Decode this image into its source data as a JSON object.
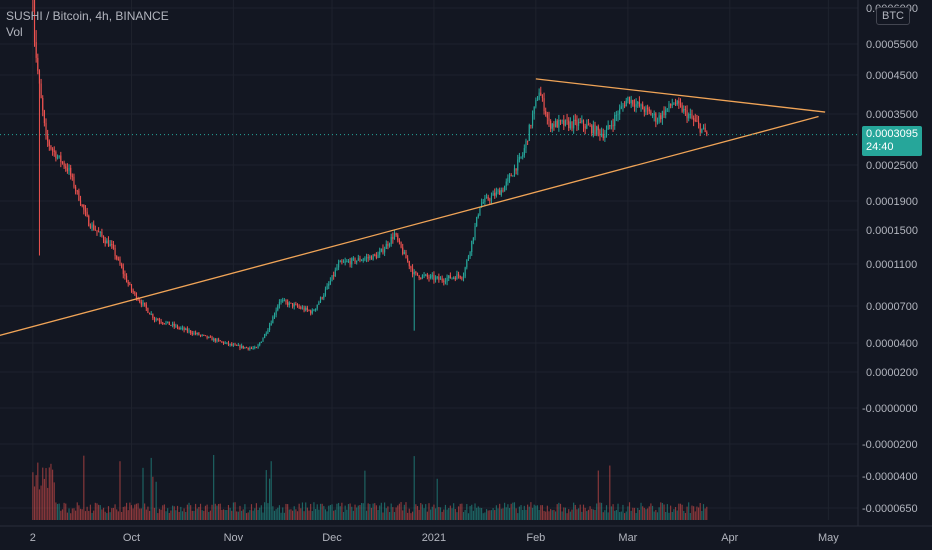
{
  "header": {
    "symbol_line": "SUSHI / Bitcoin, 4h, BINANCE",
    "volume_label": "Vol"
  },
  "currency_badge": "BTC",
  "last_price": {
    "value": "0.0003095",
    "countdown": "24:40"
  },
  "colors": {
    "background": "#131722",
    "up": "#26a69a",
    "down": "#ef5350",
    "trendline": "#f0a457",
    "text": "#b2b5be",
    "grid": "#1e222d"
  },
  "chart_data": {
    "type": "candlestick",
    "x_tick_labels": [
      "2",
      "Oct",
      "Nov",
      "Dec",
      "2021",
      "Feb",
      "Mar",
      "Apr",
      "May"
    ],
    "y_tick_labels": [
      "0.0006000",
      "0.0005500",
      "0.0004500",
      "0.0003500",
      "0.0002500",
      "0.0001900",
      "0.0001500",
      "0.0001100",
      "0.0000700",
      "0.0000400",
      "0.0000200"
    ],
    "volume_tick_labels": [
      "-0.0000000",
      "-0.0000200",
      "-0.0000400",
      "-0.0000650"
    ],
    "price_anchors": [
      {
        "date": "2020-09-01",
        "price": 0.00062
      },
      {
        "date": "2020-09-03",
        "price": 0.00042
      },
      {
        "date": "2020-09-05",
        "price": 0.0003
      },
      {
        "date": "2020-09-08",
        "price": 0.00027
      },
      {
        "date": "2020-09-12",
        "price": 0.00024
      },
      {
        "date": "2020-09-18",
        "price": 0.00016
      },
      {
        "date": "2020-09-25",
        "price": 0.00013
      },
      {
        "date": "2020-10-01",
        "price": 8.5e-05
      },
      {
        "date": "2020-10-08",
        "price": 6e-05
      },
      {
        "date": "2020-10-20",
        "price": 4.8e-05
      },
      {
        "date": "2020-11-01",
        "price": 3.8e-05
      },
      {
        "date": "2020-11-08",
        "price": 3.6e-05
      },
      {
        "date": "2020-11-15",
        "price": 7.5e-05
      },
      {
        "date": "2020-11-25",
        "price": 6.5e-05
      },
      {
        "date": "2020-12-03",
        "price": 0.00011
      },
      {
        "date": "2020-12-15",
        "price": 0.00012
      },
      {
        "date": "2020-12-20",
        "price": 0.000145
      },
      {
        "date": "2020-12-26",
        "price": 0.0001
      },
      {
        "date": "2021-01-03",
        "price": 9.5e-05
      },
      {
        "date": "2021-01-10",
        "price": 0.0001
      },
      {
        "date": "2021-01-15",
        "price": 0.000185
      },
      {
        "date": "2021-01-22",
        "price": 0.00021
      },
      {
        "date": "2021-01-28",
        "price": 0.00027
      },
      {
        "date": "2021-02-02",
        "price": 0.00041
      },
      {
        "date": "2021-02-05",
        "price": 0.00033
      },
      {
        "date": "2021-02-15",
        "price": 0.00033
      },
      {
        "date": "2021-02-22",
        "price": 0.00031
      },
      {
        "date": "2021-03-01",
        "price": 0.00039
      },
      {
        "date": "2021-03-10",
        "price": 0.00034
      },
      {
        "date": "2021-03-15",
        "price": 0.00038
      },
      {
        "date": "2021-03-22",
        "price": 0.00033
      },
      {
        "date": "2021-03-25",
        "price": 0.0003095
      }
    ],
    "trendlines": [
      {
        "name": "support",
        "from": {
          "date": "2020-08-10",
          "price": 3.8e-05
        },
        "to": {
          "date": "2021-04-28",
          "price": 0.000345
        }
      },
      {
        "name": "resistance",
        "from": {
          "date": "2021-02-01",
          "price": 0.00044
        },
        "to": {
          "date": "2021-04-30",
          "price": 0.000355
        }
      }
    ],
    "last_price": 0.0003095,
    "grid": true
  }
}
